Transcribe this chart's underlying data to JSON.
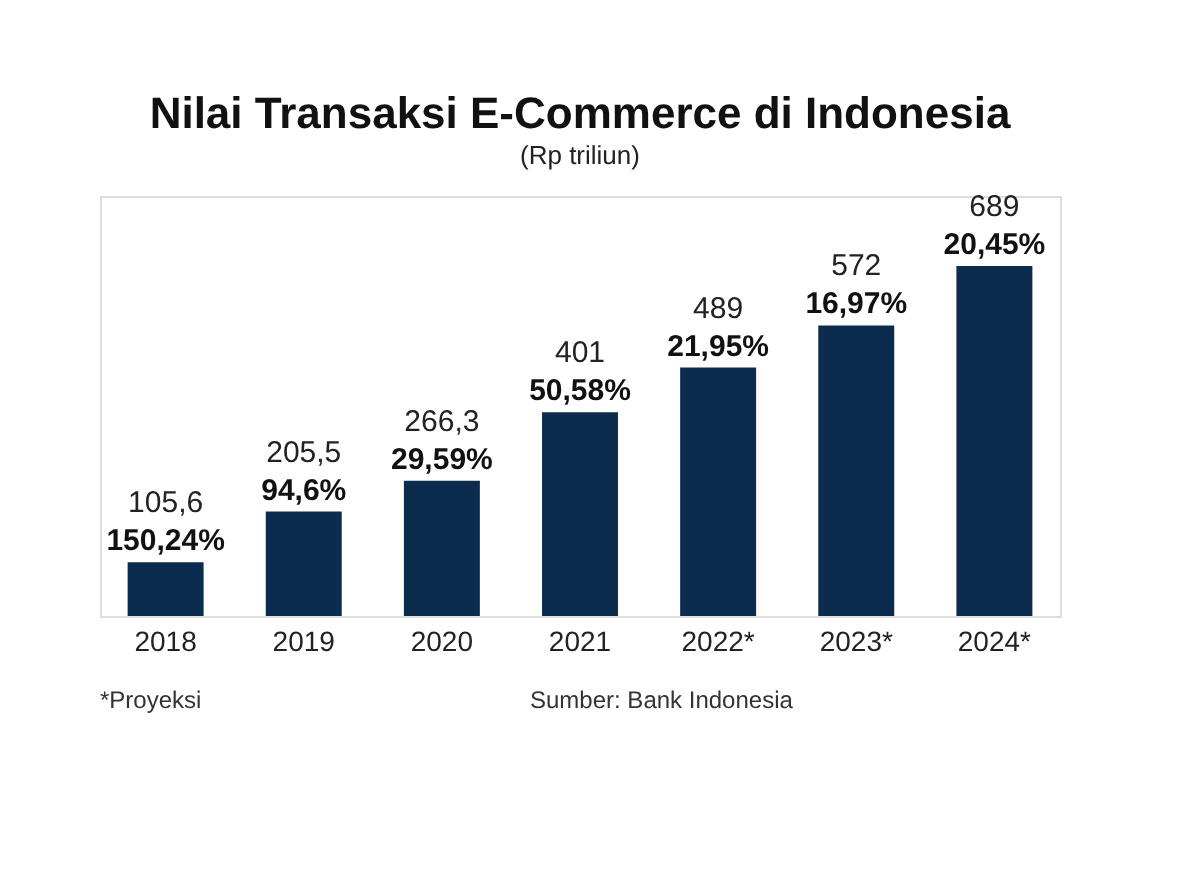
{
  "chart_data": {
    "type": "bar",
    "title": "Nilai Transaksi E-Commerce di Indonesia",
    "subtitle": "(Rp triliun)",
    "categories": [
      "2018",
      "2019",
      "2020",
      "2021",
      "2022*",
      "2023*",
      "2024*"
    ],
    "values": [
      105.6,
      205.5,
      266.3,
      401,
      489,
      572,
      689
    ],
    "value_labels": [
      "105,6",
      "205,5",
      "266,3",
      "401",
      "489",
      "572",
      "689"
    ],
    "color": "#0c2c4e",
    "annotations": [
      "150,24%",
      "94,6%",
      "29,59%",
      "50,58%",
      "21,95%",
      "16,97%",
      "20,45%",
      "*Proyeksi",
      "Sumber: Bank Indonesia"
    ],
    "grid": false
  }
}
